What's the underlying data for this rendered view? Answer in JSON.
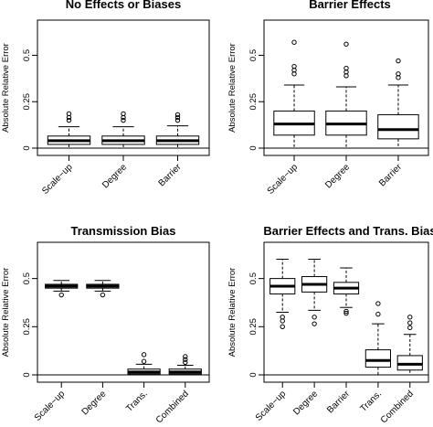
{
  "chart_data": [
    {
      "type": "boxplot",
      "title": "No Effects or Biases",
      "ylabel": "Absolute Relative Error",
      "ylim": [
        0,
        0.65
      ],
      "yticks": [
        "0",
        "0.25",
        "0.5"
      ],
      "categories": [
        "Scale−up",
        "Degree",
        "Barrier"
      ],
      "boxes": [
        {
          "whisker_low": 0.0,
          "q1": 0.02,
          "median": 0.04,
          "q3": 0.065,
          "whisker_high": 0.115,
          "outliers": [
            0.15,
            0.165,
            0.185
          ]
        },
        {
          "whisker_low": 0.0,
          "q1": 0.02,
          "median": 0.04,
          "q3": 0.065,
          "whisker_high": 0.115,
          "outliers": [
            0.15,
            0.165,
            0.185
          ]
        },
        {
          "whisker_low": 0.0,
          "q1": 0.02,
          "median": 0.04,
          "q3": 0.065,
          "whisker_high": 0.12,
          "outliers": [
            0.15,
            0.165,
            0.18
          ]
        }
      ]
    },
    {
      "type": "boxplot",
      "title": "Barrier Effects",
      "ylabel": "Absolute Relative Error",
      "ylim": [
        0,
        0.65
      ],
      "yticks": [
        "0",
        "0.25",
        "0.5"
      ],
      "categories": [
        "Scale−up",
        "Degree",
        "Barrier"
      ],
      "boxes": [
        {
          "whisker_low": 0.0,
          "q1": 0.07,
          "median": 0.13,
          "q3": 0.2,
          "whisker_high": 0.34,
          "outliers": [
            0.4,
            0.42,
            0.44,
            0.57
          ]
        },
        {
          "whisker_low": 0.0,
          "q1": 0.07,
          "median": 0.13,
          "q3": 0.2,
          "whisker_high": 0.33,
          "outliers": [
            0.39,
            0.41,
            0.43,
            0.56
          ]
        },
        {
          "whisker_low": 0.0,
          "q1": 0.05,
          "median": 0.1,
          "q3": 0.18,
          "whisker_high": 0.34,
          "outliers": [
            0.38,
            0.4,
            0.47
          ]
        }
      ]
    },
    {
      "type": "boxplot",
      "title": "Transmission Bias",
      "ylabel": "Absolute Relative Error",
      "ylim": [
        0,
        0.65
      ],
      "yticks": [
        "0",
        "0.25",
        "0.5"
      ],
      "categories": [
        "Scale−up",
        "Degree",
        "Trans.",
        "Combined"
      ],
      "boxes": [
        {
          "whisker_low": 0.435,
          "q1": 0.45,
          "median": 0.46,
          "q3": 0.47,
          "whisker_high": 0.49,
          "outliers": [
            0.415
          ]
        },
        {
          "whisker_low": 0.435,
          "q1": 0.45,
          "median": 0.46,
          "q3": 0.47,
          "whisker_high": 0.49,
          "outliers": [
            0.415
          ]
        },
        {
          "whisker_low": 0.0,
          "q1": 0.005,
          "median": 0.015,
          "q3": 0.03,
          "whisker_high": 0.055,
          "outliers": [
            0.07,
            0.105
          ]
        },
        {
          "whisker_low": 0.0,
          "q1": 0.005,
          "median": 0.015,
          "q3": 0.03,
          "whisker_high": 0.05,
          "outliers": [
            0.065,
            0.08,
            0.095
          ]
        }
      ]
    },
    {
      "type": "boxplot",
      "title": "Barrier Effects and Trans. Bias",
      "ylabel": "Absolute Relative Error",
      "ylim": [
        0,
        0.65
      ],
      "yticks": [
        "0",
        "0.25",
        "0.5"
      ],
      "categories": [
        "Scale−up",
        "Degree",
        "Barrier",
        "Trans.",
        "Combined"
      ],
      "boxes": [
        {
          "whisker_low": 0.325,
          "q1": 0.42,
          "median": 0.46,
          "q3": 0.5,
          "whisker_high": 0.6,
          "outliers": [
            0.25,
            0.28,
            0.3
          ]
        },
        {
          "whisker_low": 0.335,
          "q1": 0.43,
          "median": 0.47,
          "q3": 0.51,
          "whisker_high": 0.6,
          "outliers": [
            0.265,
            0.3
          ]
        },
        {
          "whisker_low": 0.35,
          "q1": 0.42,
          "median": 0.45,
          "q3": 0.48,
          "whisker_high": 0.555,
          "outliers": [
            0.32,
            0.33
          ]
        },
        {
          "whisker_low": 0.0,
          "q1": 0.04,
          "median": 0.075,
          "q3": 0.13,
          "whisker_high": 0.265,
          "outliers": [
            0.315,
            0.37
          ]
        },
        {
          "whisker_low": 0.0,
          "q1": 0.025,
          "median": 0.055,
          "q3": 0.1,
          "whisker_high": 0.21,
          "outliers": [
            0.245,
            0.27,
            0.3
          ]
        }
      ]
    }
  ]
}
